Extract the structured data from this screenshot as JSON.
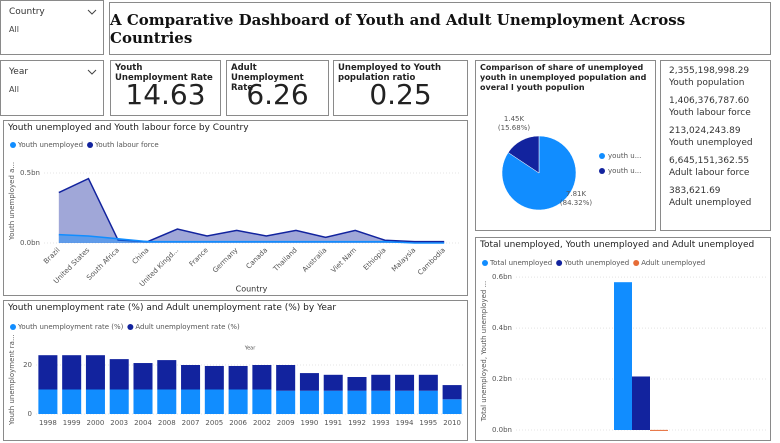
{
  "slicers": [
    {
      "label": "Country",
      "value": "All"
    },
    {
      "label": "Year",
      "value": "All"
    }
  ],
  "header": {
    "title": "A Comparative Dashboard of Youth and Adult Unemployment Across Countries"
  },
  "cards": [
    {
      "label": "Youth Unemployment Rate",
      "value": 14.63
    },
    {
      "label": "Adult Unemployment Rate",
      "value": 6.26
    },
    {
      "label": "Unemployed to Youth population ratio",
      "value": 0.25
    }
  ],
  "multi_card": [
    {
      "value": "2,355,198,998.29",
      "label": "Youth population"
    },
    {
      "value": "1,406,376,787.60",
      "label": "Youth labour force"
    },
    {
      "value": "213,024,243.89",
      "label": "Youth unemployed"
    },
    {
      "value": "6,645,151,362.55",
      "label": "Adult labour force"
    },
    {
      "value": "383,621.69",
      "label": "Adult unemployed"
    }
  ],
  "chart_data": [
    {
      "type": "area",
      "title": "Youth unemployed and Youth labour force by Country",
      "x_label": "Country",
      "y_label": "Youth unemployed a...",
      "categories": [
        "Brazil",
        "United States",
        "South Africa",
        "China",
        "United Kingd...",
        "France",
        "Germany",
        "Canada",
        "Thailand",
        "Australia",
        "Viet Nam",
        "Ethiopia",
        "Malaysia",
        "Cambodia"
      ],
      "series": [
        {
          "name": "Youth unemployed",
          "color": "#118dff",
          "values": [
            0.06,
            0.05,
            0.03,
            0.01,
            0.01,
            0.01,
            0.01,
            0.01,
            0.01,
            0.01,
            0.01,
            0.01,
            0.0,
            0.0
          ]
        },
        {
          "name": "Youth labour force",
          "color": "#12239e",
          "values": [
            0.36,
            0.46,
            0.02,
            0.01,
            0.1,
            0.05,
            0.09,
            0.05,
            0.09,
            0.04,
            0.09,
            0.02,
            0.01,
            0.01
          ]
        }
      ],
      "ylim": [
        0,
        0.6
      ],
      "yticks": [
        {
          "value": 0,
          "label": "0.0bn"
        },
        {
          "value": 0.5,
          "label": "0.5bn"
        }
      ]
    },
    {
      "type": "stacked_bar",
      "title": "Youth unemployment rate (%) and Adult unemployment rate (%) by Year",
      "x_label": "Year",
      "y_label": "Youth unemployment ra...",
      "categories": [
        "1998",
        "1999",
        "2000",
        "2003",
        "2004",
        "2008",
        "2007",
        "2005",
        "2006",
        "2002",
        "2009",
        "1990",
        "1991",
        "1992",
        "1993",
        "1994",
        "1995",
        "2010"
      ],
      "series": [
        {
          "name": "Youth unemployment rate (%)",
          "color": "#118dff",
          "values": [
            10,
            10,
            10,
            10,
            10,
            10,
            10,
            10,
            10,
            10,
            9.5,
            9.5,
            9.5,
            9.5,
            9.5,
            9.5,
            9.5,
            6
          ]
        },
        {
          "name": "Adult unemployment rate (%)",
          "color": "#12239e",
          "values": [
            14,
            14,
            14,
            12.4,
            10.8,
            12,
            10,
            9.6,
            9.6,
            10,
            10.5,
            7.2,
            6.5,
            5.6,
            6.5,
            6.5,
            6.5,
            5.8
          ]
        }
      ],
      "ylim": [
        0,
        28
      ],
      "yticks": [
        0,
        20
      ]
    },
    {
      "type": "pie",
      "title": "Comparison of share of unemployed youth in unemployed population and overal l youth populion",
      "categories": [
        "youth u...",
        "youth u..."
      ],
      "values": [
        7810,
        1450
      ],
      "value_labels": [
        "7.81K",
        "1.45K"
      ],
      "percent_labels": [
        "(84.32%)",
        "(15.68%)"
      ],
      "colors": [
        "#118dff",
        "#12239e"
      ]
    },
    {
      "type": "clustered_bar",
      "title": "Total unemployed, Youth unemployed and Adult unemployed",
      "y_label": "Total unemployed, Youth unemployed ...",
      "categories": [
        null
      ],
      "series": [
        {
          "name": "Total unemployed",
          "color": "#118dff",
          "values": [
            0.58
          ]
        },
        {
          "name": "Youth unemployed",
          "color": "#12239e",
          "values": [
            0.21
          ]
        },
        {
          "name": "Adult unemployed",
          "color": "#e66c37",
          "values": [
            0.0004
          ]
        }
      ],
      "ylim": [
        0,
        0.62
      ],
      "yticks": [
        {
          "value": 0,
          "label": "0.0bn"
        },
        {
          "value": 0.2,
          "label": "0.2bn"
        },
        {
          "value": 0.4,
          "label": "0.4bn"
        },
        {
          "value": 0.6,
          "label": "0.6bn"
        }
      ]
    }
  ]
}
